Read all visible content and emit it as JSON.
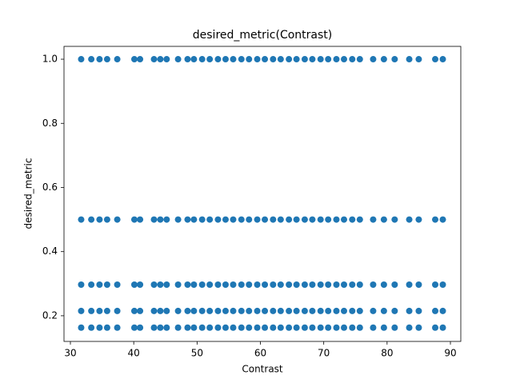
{
  "chart_data": {
    "type": "scatter",
    "title": "desired_metric(Contrast)",
    "x_label": "Contrast",
    "y_label": "desired_metric",
    "color": "#1f77b4",
    "x": [
      31.7,
      33.3,
      34.6,
      35.8,
      37.4,
      40.1,
      41.0,
      43.2,
      44.2,
      45.2,
      47.0,
      48.5,
      49.5,
      50.8,
      52.0,
      53.3,
      54.5,
      55.7,
      57.0,
      58.2,
      59.5,
      60.7,
      62.0,
      63.2,
      64.5,
      65.7,
      67.0,
      68.2,
      69.5,
      70.7,
      72.0,
      73.2,
      74.5,
      75.7,
      77.8,
      79.5,
      81.2,
      83.5,
      85.0,
      87.6,
      88.8
    ],
    "series": [
      {
        "values": [
          1.0,
          1.0,
          1.0,
          1.0,
          1.0,
          1.0,
          1.0,
          1.0,
          1.0,
          1.0,
          1.0,
          1.0,
          1.0,
          1.0,
          1.0,
          1.0,
          1.0,
          1.0,
          1.0,
          1.0,
          1.0,
          1.0,
          1.0,
          1.0,
          1.0,
          1.0,
          1.0,
          1.0,
          1.0,
          1.0,
          1.0,
          1.0,
          1.0,
          1.0,
          1.0,
          1.0,
          1.0,
          1.0,
          1.0,
          1.0,
          1.0
        ]
      },
      {
        "values": [
          0.5,
          0.5,
          0.5,
          0.5,
          0.5,
          0.5,
          0.5,
          0.5,
          0.5,
          0.5,
          0.5,
          0.5,
          0.5,
          0.5,
          0.5,
          0.5,
          0.5,
          0.5,
          0.5,
          0.5,
          0.5,
          0.5,
          0.5,
          0.5,
          0.5,
          0.5,
          0.5,
          0.5,
          0.5,
          0.5,
          0.5,
          0.5,
          0.5,
          0.5,
          0.5,
          0.5,
          0.5,
          0.5,
          0.5,
          0.5,
          0.5
        ]
      },
      {
        "values": [
          0.297,
          0.297,
          0.297,
          0.297,
          0.297,
          0.297,
          0.297,
          0.297,
          0.297,
          0.297,
          0.297,
          0.297,
          0.297,
          0.297,
          0.297,
          0.297,
          0.297,
          0.297,
          0.297,
          0.297,
          0.297,
          0.297,
          0.297,
          0.297,
          0.297,
          0.297,
          0.297,
          0.297,
          0.297,
          0.297,
          0.297,
          0.297,
          0.297,
          0.297,
          0.297,
          0.297,
          0.297,
          0.297,
          0.297,
          0.297,
          0.297
        ]
      },
      {
        "values": [
          0.215,
          0.215,
          0.215,
          0.215,
          0.215,
          0.215,
          0.215,
          0.215,
          0.215,
          0.215,
          0.215,
          0.215,
          0.215,
          0.215,
          0.215,
          0.215,
          0.215,
          0.215,
          0.215,
          0.215,
          0.215,
          0.215,
          0.215,
          0.215,
          0.215,
          0.215,
          0.215,
          0.215,
          0.215,
          0.215,
          0.215,
          0.215,
          0.215,
          0.215,
          0.215,
          0.215,
          0.215,
          0.215,
          0.215,
          0.215,
          0.215
        ]
      },
      {
        "values": [
          0.163,
          0.163,
          0.163,
          0.163,
          0.163,
          0.163,
          0.163,
          0.163,
          0.163,
          0.163,
          0.163,
          0.163,
          0.163,
          0.163,
          0.163,
          0.163,
          0.163,
          0.163,
          0.163,
          0.163,
          0.163,
          0.163,
          0.163,
          0.163,
          0.163,
          0.163,
          0.163,
          0.163,
          0.163,
          0.163,
          0.163,
          0.163,
          0.163,
          0.163,
          0.163,
          0.163,
          0.163,
          0.163,
          0.163,
          0.163,
          0.163
        ]
      }
    ],
    "xlim": [
      28.99,
      91.64
    ],
    "xticks": [
      30,
      40,
      50,
      60,
      70,
      80,
      90
    ],
    "ylim": [
      0.12,
      1.04
    ],
    "yticks": [
      0.2,
      0.4,
      0.6,
      0.8,
      {
        "value": 1.0,
        "label": "1.0"
      }
    ]
  }
}
